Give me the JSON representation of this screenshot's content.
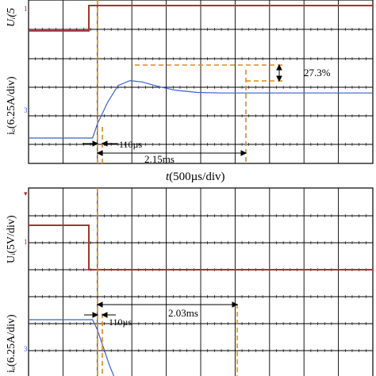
{
  "chart_data": [
    {
      "type": "line",
      "panel": "top",
      "grid": true,
      "xlabel_var": "t",
      "xlabel_rest": "(500µs/div)",
      "x_unit_per_div": "500µs",
      "traces": [
        {
          "label": "Uᵢ(5V/div)",
          "label_visible": "Uᵢ(5",
          "marker": "1",
          "color": "#a83236",
          "x": [
            0,
            1.75,
            1.75,
            10
          ],
          "y": [
            1.55,
            1.55,
            3.0,
            3.0
          ]
        },
        {
          "label": "iₒ(6.25A/div)",
          "marker": "3",
          "color": "#3a5fcd",
          "x": [
            0,
            1.75,
            1.86,
            2.0,
            2.3,
            2.6,
            2.95,
            3.3,
            3.8,
            4.3,
            4.9,
            5.6,
            6.5,
            10
          ],
          "y": [
            0,
            0,
            0,
            0.55,
            1.4,
            2.05,
            2.24,
            2.19,
            2.0,
            1.86,
            1.78,
            1.76,
            1.76,
            1.76
          ]
        }
      ],
      "annotations": {
        "delay": "110µs",
        "settling_time": "2.15ms",
        "overshoot": "27.3%"
      }
    },
    {
      "type": "line",
      "panel": "bottom",
      "grid": true,
      "x_unit_per_div": "500µs",
      "traces": [
        {
          "label": "Uᵢ(5V/div)",
          "marker": "1",
          "color": "#a83236",
          "x": [
            0,
            1.75,
            1.75,
            10
          ],
          "y": [
            2.0,
            2.0,
            0,
            0
          ]
        },
        {
          "label": "iₒ(6.25A/div)",
          "marker": "3",
          "color": "#3a5fcd",
          "x": [
            0,
            1.75,
            1.86,
            2.0,
            2.15,
            2.35,
            2.5
          ],
          "y": [
            0,
            0,
            0,
            -0.4,
            -1.0,
            -1.8,
            -2.3
          ]
        }
      ],
      "annotations": {
        "delay": "110µs",
        "settling_time": "2.03ms"
      }
    }
  ]
}
